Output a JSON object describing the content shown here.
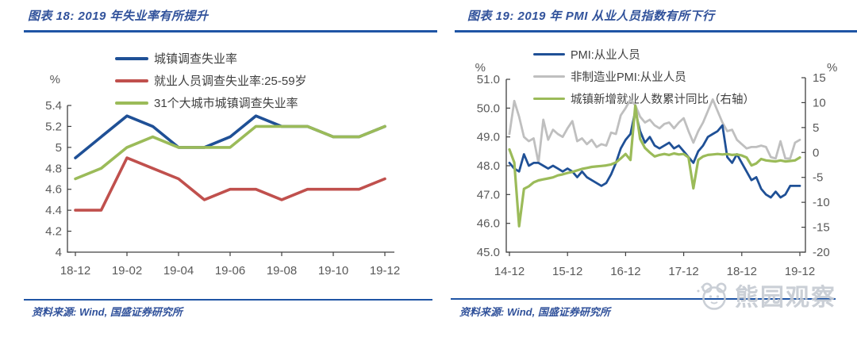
{
  "panels": [
    {
      "title": "图表 18: 2019 年失业率有所提升",
      "source": "资料来源: Wind, 国盛证券研究所"
    },
    {
      "title": "图表 19: 2019 年 PMI 从业人员指数有所下行",
      "source": "资料来源: Wind, 国盛证券研究所"
    }
  ],
  "watermark": {
    "text": "熊园观察",
    "icon": "bear-icon"
  },
  "colors": {
    "series_blue": "#1F5096",
    "series_red": "#C0504D",
    "series_green": "#9BBB59",
    "series_gray": "#BFBFBF",
    "title_navy": "#31529B",
    "rule_blue": "#1F55A5",
    "axis_text": "#595959",
    "axis_line": "#404040",
    "watermark_gray": "#C6CBD3"
  },
  "chart_data": [
    {
      "type": "line",
      "title": "图表 18: 2019 年失业率有所提升",
      "y_axis_unit": "%",
      "x": [
        "18-12",
        "19-01",
        "19-02",
        "19-03",
        "19-04",
        "19-05",
        "19-06",
        "19-07",
        "19-08",
        "19-09",
        "19-10",
        "19-11",
        "19-12"
      ],
      "x_tick_labels": [
        "18-12",
        "19-02",
        "19-04",
        "19-06",
        "19-08",
        "19-10",
        "19-12"
      ],
      "x_tick_indices": [
        0,
        2,
        4,
        6,
        8,
        10,
        12
      ],
      "ylim": [
        4,
        5.4
      ],
      "yticks": [
        5.4,
        5.2,
        5,
        4.8,
        4.6,
        4.4,
        4.2,
        4
      ],
      "ytick_labels": [
        "5.4",
        "5.2",
        "5",
        "4.8",
        "4.6",
        "4.4",
        "4.2",
        "4"
      ],
      "grid": false,
      "legend_position": "top",
      "series": [
        {
          "name": "城镇调查失业率",
          "color": "#1F5096",
          "values": [
            4.9,
            5.1,
            5.3,
            5.2,
            5.0,
            5.0,
            5.1,
            5.3,
            5.2,
            5.2,
            5.1,
            5.1,
            5.2
          ]
        },
        {
          "name": "就业人员调查失业率:25-59岁",
          "color": "#C0504D",
          "values": [
            4.4,
            4.4,
            4.9,
            4.8,
            4.7,
            4.5,
            4.6,
            4.6,
            4.5,
            4.6,
            4.6,
            4.6,
            4.7
          ]
        },
        {
          "name": "31个大城市城镇调查失业率",
          "color": "#9BBB59",
          "values": [
            4.7,
            4.8,
            5.0,
            5.1,
            5.0,
            5.0,
            5.0,
            5.2,
            5.2,
            5.2,
            5.1,
            5.1,
            5.2
          ]
        }
      ],
      "draw_order": [
        0,
        1,
        2
      ]
    },
    {
      "type": "line",
      "title": "图表 19: 2019 年 PMI 从业人员指数有所下行",
      "left_axis_unit": "%",
      "right_axis_unit": "%",
      "x_monthly_start": "14-12",
      "x_monthly_end": "19-12",
      "x_tick_labels": [
        "14-12",
        "15-12",
        "16-12",
        "17-12",
        "18-12",
        "19-12"
      ],
      "x_tick_indices": [
        0,
        12,
        24,
        36,
        48,
        60
      ],
      "left_ylim": [
        45,
        51
      ],
      "left_yticks": [
        51,
        50,
        49,
        48,
        47,
        46,
        45
      ],
      "left_ytick_labels": [
        "51.0",
        "50.0",
        "49.0",
        "48.0",
        "47.0",
        "46.0",
        "45.0"
      ],
      "right_ylim": [
        -20,
        15
      ],
      "right_yticks": [
        15,
        10,
        5,
        0,
        -5,
        -10,
        -15,
        -20
      ],
      "right_ytick_labels": [
        "15",
        "10",
        "5",
        "0",
        "-5",
        "-10",
        "-15",
        "-20"
      ],
      "grid": false,
      "legend_position": "top",
      "series": [
        {
          "name": "PMI:从业人员",
          "axis": "left",
          "color": "#1F5096",
          "values": [
            48.1,
            47.9,
            47.8,
            48.4,
            48.0,
            48.1,
            48.1,
            48.0,
            47.9,
            48.0,
            47.9,
            47.8,
            47.9,
            47.8,
            47.6,
            47.8,
            47.6,
            47.5,
            47.4,
            47.3,
            47.4,
            47.7,
            48.1,
            48.6,
            48.9,
            49.1,
            49.9,
            49.2,
            48.8,
            49.0,
            48.7,
            48.6,
            48.7,
            48.8,
            48.6,
            48.7,
            48.5,
            48.3,
            48.1,
            48.5,
            48.7,
            49.0,
            49.1,
            49.2,
            49.4,
            48.3,
            48.1,
            48.4,
            48.1,
            47.8,
            47.5,
            47.6,
            47.2,
            47.0,
            46.9,
            47.1,
            46.9,
            47.0,
            47.3,
            47.3,
            47.3
          ]
        },
        {
          "name": "非制造业PMI:从业人员",
          "axis": "left",
          "color": "#BFBFBF",
          "values": [
            49.1,
            50.25,
            49.7,
            49.0,
            48.85,
            48.95,
            48.1,
            49.6,
            48.9,
            49.25,
            49.1,
            49.0,
            49.3,
            49.55,
            48.85,
            48.95,
            48.75,
            48.9,
            48.65,
            48.75,
            48.7,
            49.15,
            49.1,
            49.75,
            50.0,
            50.3,
            50.1,
            49.7,
            49.5,
            49.6,
            49.4,
            49.3,
            49.45,
            49.5,
            49.3,
            49.5,
            49.65,
            49.2,
            48.8,
            49.2,
            49.5,
            49.9,
            50.3,
            49.9,
            49.5,
            49.2,
            49.25,
            48.9,
            48.75,
            48.6,
            48.65,
            48.65,
            48.7,
            48.65,
            48.3,
            48.25,
            48.85,
            48.25,
            48.25,
            48.8,
            48.9
          ]
        },
        {
          "name": "城镇新增就业人数累计同比（右轴）",
          "axis": "right",
          "color": "#9BBB59",
          "values": [
            0.6,
            -2.0,
            -14.8,
            -7.3,
            -6.8,
            -6.0,
            -5.6,
            -5.4,
            -5.2,
            -5.0,
            -4.6,
            -4.4,
            -4.1,
            -3.9,
            -3.6,
            -3.3,
            -3.1,
            -2.9,
            -2.8,
            -2.7,
            -2.6,
            -2.4,
            -2.0,
            -1.2,
            -0.3,
            -1.5,
            9.4,
            2.7,
            0.9,
            0.0,
            -0.8,
            -0.5,
            -0.3,
            -0.5,
            -0.2,
            -0.4,
            -0.3,
            -1.0,
            -7.2,
            -1.5,
            -0.8,
            -0.5,
            -0.4,
            -0.3,
            -0.4,
            -0.3,
            -0.5,
            -0.4,
            -0.6,
            -1.0,
            -2.6,
            -2.2,
            -1.3,
            -1.6,
            -1.7,
            -1.8,
            -1.6,
            -1.8,
            -1.7,
            -1.6,
            -1.0
          ]
        }
      ],
      "draw_order": [
        1,
        0,
        2
      ]
    }
  ]
}
